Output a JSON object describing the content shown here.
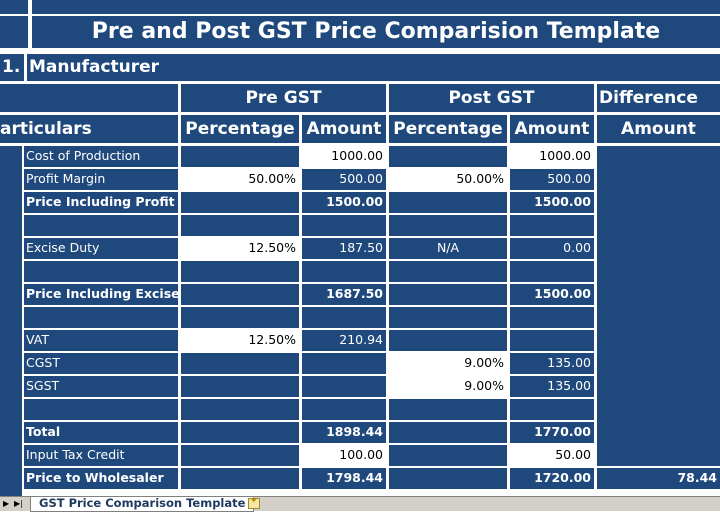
{
  "title": "Pre and Post GST Price Comparision Template",
  "section": {
    "number": "1.",
    "name": "Manufacturer"
  },
  "headers": {
    "pre_gst": "Pre GST",
    "post_gst": "Post GST",
    "difference": "Difference",
    "particulars": "Particulars",
    "pre_percentage": "Percentage",
    "pre_amount": "Amount",
    "post_percentage": "Percentage",
    "post_amount": "Amount",
    "diff_amount": "Amount"
  },
  "rows": [
    {
      "label": "Cost of Production",
      "pre_pct": "",
      "pre_amt": "1000.00",
      "post_pct": "",
      "post_amt": "1000.00",
      "diff": ""
    },
    {
      "label": "Profit Margin",
      "pre_pct": "50.00%",
      "pre_amt": "500.00",
      "post_pct": "50.00%",
      "post_amt": "500.00",
      "diff": ""
    },
    {
      "label": "Price Including Profit",
      "pre_pct": "",
      "pre_amt": "1500.00",
      "post_pct": "",
      "post_amt": "1500.00",
      "diff": ""
    },
    {
      "label": "",
      "pre_pct": "",
      "pre_amt": "",
      "post_pct": "",
      "post_amt": "",
      "diff": ""
    },
    {
      "label": "Excise Duty",
      "pre_pct": "12.50%",
      "pre_amt": "187.50",
      "post_pct": "N/A",
      "post_amt": "0.00",
      "diff": ""
    },
    {
      "label": "",
      "pre_pct": "",
      "pre_amt": "",
      "post_pct": "",
      "post_amt": "",
      "diff": ""
    },
    {
      "label": "Price Including Excise",
      "pre_pct": "",
      "pre_amt": "1687.50",
      "post_pct": "",
      "post_amt": "1500.00",
      "diff": ""
    },
    {
      "label": "",
      "pre_pct": "",
      "pre_amt": "",
      "post_pct": "",
      "post_amt": "",
      "diff": ""
    },
    {
      "label": "VAT",
      "pre_pct": "12.50%",
      "pre_amt": "210.94",
      "post_pct": "",
      "post_amt": "",
      "diff": ""
    },
    {
      "label": "CGST",
      "pre_pct": "",
      "pre_amt": "",
      "post_pct": "9.00%",
      "post_amt": "135.00",
      "diff": ""
    },
    {
      "label": "SGST",
      "pre_pct": "",
      "pre_amt": "",
      "post_pct": "9.00%",
      "post_amt": "135.00",
      "diff": ""
    },
    {
      "label": "",
      "pre_pct": "",
      "pre_amt": "",
      "post_pct": "",
      "post_amt": "",
      "diff": ""
    },
    {
      "label": "Total",
      "pre_pct": "",
      "pre_amt": "1898.44",
      "post_pct": "",
      "post_amt": "1770.00",
      "diff": ""
    },
    {
      "label": "Input Tax Credit",
      "pre_pct": "",
      "pre_amt": "100.00",
      "post_pct": "",
      "post_amt": "50.00",
      "diff": ""
    },
    {
      "label": "Price to Wholesaler",
      "pre_pct": "",
      "pre_amt": "1798.44",
      "post_pct": "",
      "post_amt": "1720.00",
      "diff": "78.44"
    }
  ],
  "sheet_tab": "GST Price Comparison Template",
  "colors": {
    "fill": "#1f497d",
    "grid": "#ffffff",
    "input": "#ffffff"
  }
}
